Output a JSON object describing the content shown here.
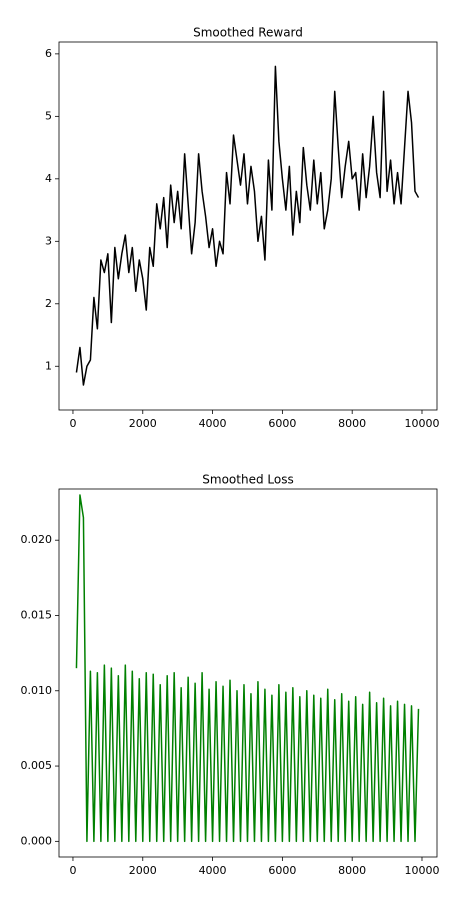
{
  "chart_data": [
    {
      "type": "line",
      "title": "Smoothed Reward",
      "x": [
        100,
        200,
        300,
        400,
        500,
        600,
        700,
        800,
        900,
        1000,
        1100,
        1200,
        1300,
        1400,
        1500,
        1600,
        1700,
        1800,
        1900,
        2000,
        2100,
        2200,
        2300,
        2400,
        2500,
        2600,
        2700,
        2800,
        2900,
        3000,
        3100,
        3200,
        3300,
        3400,
        3500,
        3600,
        3700,
        3800,
        3900,
        4000,
        4100,
        4200,
        4300,
        4400,
        4500,
        4600,
        4700,
        4800,
        4900,
        5000,
        5100,
        5200,
        5300,
        5400,
        5500,
        5600,
        5700,
        5800,
        5900,
        6000,
        6100,
        6200,
        6300,
        6400,
        6500,
        6600,
        6700,
        6800,
        6900,
        7000,
        7100,
        7200,
        7300,
        7400,
        7500,
        7600,
        7700,
        7800,
        7900,
        8000,
        8100,
        8200,
        8300,
        8400,
        8500,
        8600,
        8700,
        8800,
        8900,
        9000,
        9100,
        9200,
        9300,
        9400,
        9500,
        9600,
        9700,
        9800,
        9900
      ],
      "series": [
        {
          "name": "reward",
          "color": "#000000",
          "values": [
            0.9,
            1.3,
            0.7,
            1.0,
            1.1,
            2.1,
            1.6,
            2.7,
            2.5,
            2.8,
            1.7,
            2.9,
            2.4,
            2.8,
            3.1,
            2.5,
            2.9,
            2.2,
            2.7,
            2.4,
            1.9,
            2.9,
            2.6,
            3.6,
            3.2,
            3.7,
            2.9,
            3.9,
            3.3,
            3.8,
            3.2,
            4.4,
            3.6,
            2.8,
            3.3,
            4.4,
            3.8,
            3.4,
            2.9,
            3.2,
            2.6,
            3.0,
            2.8,
            4.1,
            3.6,
            4.7,
            4.3,
            3.9,
            4.4,
            3.6,
            4.2,
            3.8,
            3.0,
            3.4,
            2.7,
            4.3,
            3.5,
            5.8,
            4.6,
            4.0,
            3.5,
            4.2,
            3.1,
            3.8,
            3.3,
            4.5,
            3.9,
            3.5,
            4.3,
            3.6,
            4.1,
            3.2,
            3.5,
            4.0,
            5.4,
            4.5,
            3.7,
            4.2,
            4.6,
            4.0,
            4.1,
            3.5,
            4.4,
            3.7,
            4.2,
            5.0,
            4.1,
            3.7,
            5.4,
            3.8,
            4.3,
            3.6,
            4.1,
            3.6,
            4.5,
            5.4,
            4.9,
            3.8,
            3.7
          ]
        }
      ],
      "xlim": [
        -400,
        10430
      ],
      "xticks": [
        0,
        2000,
        4000,
        6000,
        8000,
        10000
      ],
      "ylim": [
        0.3,
        6.19
      ],
      "yticks": [
        1,
        2,
        3,
        4,
        5,
        6
      ]
    },
    {
      "type": "line",
      "title": "Smoothed Loss",
      "x": [
        100,
        200,
        300,
        400,
        500,
        600,
        700,
        800,
        900,
        1000,
        1100,
        1200,
        1300,
        1400,
        1500,
        1600,
        1700,
        1800,
        1900,
        2000,
        2100,
        2200,
        2300,
        2400,
        2500,
        2600,
        2700,
        2800,
        2900,
        3000,
        3100,
        3200,
        3300,
        3400,
        3500,
        3600,
        3700,
        3800,
        3900,
        4000,
        4100,
        4200,
        4300,
        4400,
        4500,
        4600,
        4700,
        4800,
        4900,
        5000,
        5100,
        5200,
        5300,
        5400,
        5500,
        5600,
        5700,
        5800,
        5900,
        6000,
        6100,
        6200,
        6300,
        6400,
        6500,
        6600,
        6700,
        6800,
        6900,
        7000,
        7100,
        7200,
        7300,
        7400,
        7500,
        7600,
        7700,
        7800,
        7900,
        8000,
        8100,
        8200,
        8300,
        8400,
        8500,
        8600,
        8700,
        8800,
        8900,
        9000,
        9100,
        9200,
        9300,
        9400,
        9500,
        9600,
        9700,
        9800,
        9900
      ],
      "series": [
        {
          "name": "loss",
          "color": "#008000",
          "values": [
            0.0115,
            0.023,
            0.0215,
            0,
            0.0113,
            0,
            0.0112,
            0,
            0.0117,
            0,
            0.0115,
            0,
            0.011,
            0,
            0.0117,
            0,
            0.0113,
            0,
            0.0108,
            0,
            0.0112,
            0,
            0.0111,
            0,
            0.0104,
            0,
            0.011,
            0,
            0.0112,
            0,
            0.0102,
            0,
            0.0109,
            0,
            0.0105,
            0,
            0.0112,
            0,
            0.0101,
            0,
            0.0106,
            0,
            0.0103,
            0,
            0.0107,
            0,
            0.01,
            0,
            0.0104,
            0,
            0.0098,
            0,
            0.0106,
            0,
            0.0101,
            0,
            0.0097,
            0,
            0.0104,
            0,
            0.0099,
            0,
            0.0102,
            0,
            0.0096,
            0,
            0.01,
            0,
            0.0097,
            0,
            0.0095,
            0,
            0.0101,
            0,
            0.0094,
            0,
            0.0098,
            0,
            0.0093,
            0,
            0.0096,
            0,
            0.0091,
            0,
            0.0099,
            0,
            0.0092,
            0,
            0.0095,
            0,
            0.009,
            0,
            0.0093,
            0,
            0.0091,
            0,
            0.009,
            0,
            0.0088
          ]
        }
      ],
      "xlim": [
        -400,
        10430
      ],
      "xticks": [
        0,
        2000,
        4000,
        6000,
        8000,
        10000
      ],
      "ylim": [
        -0.00104,
        0.0234
      ],
      "yticks": [
        {
          "value": 0,
          "label": "0.000"
        },
        {
          "value": 0.005,
          "label": "0.005"
        },
        {
          "value": 0.01,
          "label": "0.010"
        },
        {
          "value": 0.015,
          "label": "0.015"
        },
        {
          "value": 0.02,
          "label": "0.020"
        }
      ]
    }
  ]
}
